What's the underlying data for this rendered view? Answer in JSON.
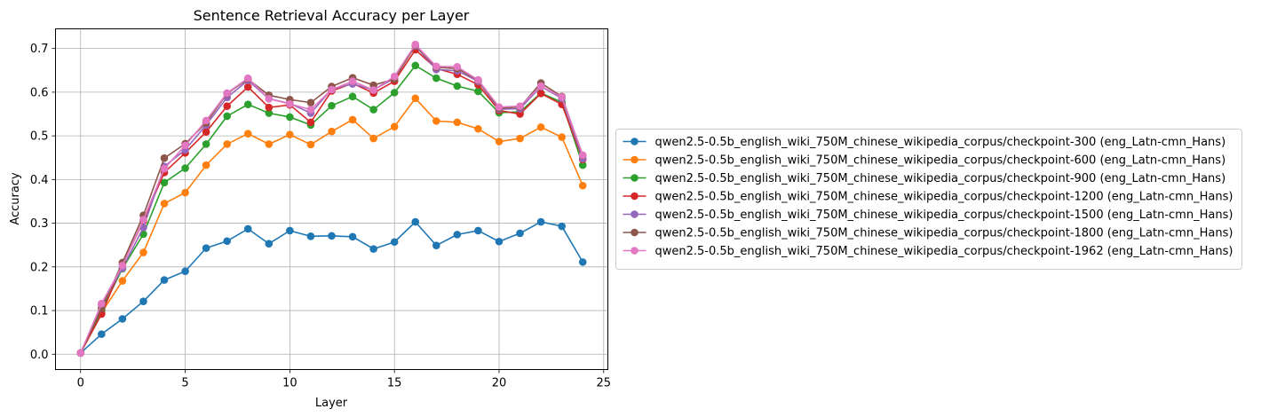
{
  "chart_data": {
    "type": "line",
    "title": "Sentence Retrieval Accuracy per Layer",
    "xlabel": "Layer",
    "ylabel": "Accuracy",
    "xlim": [
      -1.2,
      25.2
    ],
    "ylim": [
      -0.035,
      0.745
    ],
    "xticks": [
      0,
      5,
      10,
      15,
      20,
      25
    ],
    "yticks": [
      0.0,
      0.1,
      0.2,
      0.3,
      0.4,
      0.5,
      0.6,
      0.7
    ],
    "ytick_labels": [
      "0.0",
      "0.1",
      "0.2",
      "0.3",
      "0.4",
      "0.5",
      "0.6",
      "0.7"
    ],
    "grid": true,
    "legend_position": "outside right",
    "x": [
      0,
      1,
      2,
      3,
      4,
      5,
      6,
      7,
      8,
      9,
      10,
      11,
      12,
      13,
      14,
      15,
      16,
      17,
      18,
      19,
      20,
      21,
      22,
      23,
      24
    ],
    "series": [
      {
        "name": "qwen2.5-0.5b_english_wiki_750M_chinese_wikipedia_corpus/checkpoint-300 (eng_Latn-cmn_Hans)",
        "color": "#1f77b4",
        "values": [
          0.003,
          0.046,
          0.081,
          0.121,
          0.17,
          0.19,
          0.243,
          0.259,
          0.287,
          0.253,
          0.283,
          0.27,
          0.271,
          0.269,
          0.241,
          0.257,
          0.303,
          0.249,
          0.274,
          0.283,
          0.258,
          0.277,
          0.303,
          0.293,
          0.211
        ]
      },
      {
        "name": "qwen2.5-0.5b_english_wiki_750M_chinese_wikipedia_corpus/checkpoint-600 (eng_Latn-cmn_Hans)",
        "color": "#ff7f0e",
        "values": [
          0.003,
          0.095,
          0.168,
          0.233,
          0.345,
          0.37,
          0.433,
          0.481,
          0.505,
          0.481,
          0.503,
          0.48,
          0.51,
          0.537,
          0.494,
          0.521,
          0.586,
          0.534,
          0.531,
          0.516,
          0.487,
          0.494,
          0.52,
          0.497,
          0.386
        ]
      },
      {
        "name": "qwen2.5-0.5b_english_wiki_750M_chinese_wikipedia_corpus/checkpoint-900 (eng_Latn-cmn_Hans)",
        "color": "#2ca02c",
        "values": [
          0.003,
          0.1,
          0.196,
          0.275,
          0.393,
          0.426,
          0.481,
          0.545,
          0.572,
          0.552,
          0.543,
          0.525,
          0.569,
          0.59,
          0.56,
          0.599,
          0.661,
          0.632,
          0.614,
          0.602,
          0.553,
          0.555,
          0.598,
          0.577,
          0.433
        ]
      },
      {
        "name": "qwen2.5-0.5b_english_wiki_750M_chinese_wikipedia_corpus/checkpoint-1200 (eng_Latn-cmn_Hans)",
        "color": "#d62728",
        "values": [
          0.003,
          0.092,
          0.205,
          0.305,
          0.416,
          0.461,
          0.509,
          0.568,
          0.612,
          0.565,
          0.571,
          0.531,
          0.603,
          0.62,
          0.598,
          0.625,
          0.697,
          0.654,
          0.641,
          0.617,
          0.558,
          0.55,
          0.597,
          0.572,
          0.446
        ]
      },
      {
        "name": "qwen2.5-0.5b_english_wiki_750M_chinese_wikipedia_corpus/checkpoint-1500 (eng_Latn-cmn_Hans)",
        "color": "#9467bd",
        "values": [
          0.003,
          0.114,
          0.197,
          0.29,
          0.43,
          0.468,
          0.525,
          0.588,
          0.627,
          0.585,
          0.574,
          0.552,
          0.607,
          0.619,
          0.605,
          0.632,
          0.706,
          0.652,
          0.649,
          0.625,
          0.561,
          0.562,
          0.613,
          0.586,
          0.448
        ]
      },
      {
        "name": "qwen2.5-0.5b_english_wiki_750M_chinese_wikipedia_corpus/checkpoint-1800 (eng_Latn-cmn_Hans)",
        "color": "#8c564b",
        "values": [
          0.003,
          0.105,
          0.21,
          0.318,
          0.449,
          0.482,
          0.53,
          0.597,
          0.63,
          0.593,
          0.583,
          0.576,
          0.613,
          0.633,
          0.616,
          0.63,
          0.707,
          0.657,
          0.654,
          0.627,
          0.563,
          0.566,
          0.621,
          0.59,
          0.455
        ]
      },
      {
        "name": "qwen2.5-0.5b_english_wiki_750M_chinese_wikipedia_corpus/checkpoint-1962 (eng_Latn-cmn_Hans)",
        "color": "#e377c2",
        "values": [
          0.003,
          0.116,
          0.203,
          0.308,
          0.425,
          0.478,
          0.535,
          0.598,
          0.632,
          0.585,
          0.573,
          0.56,
          0.606,
          0.625,
          0.605,
          0.636,
          0.709,
          0.659,
          0.658,
          0.628,
          0.566,
          0.568,
          0.614,
          0.589,
          0.456
        ]
      }
    ]
  }
}
